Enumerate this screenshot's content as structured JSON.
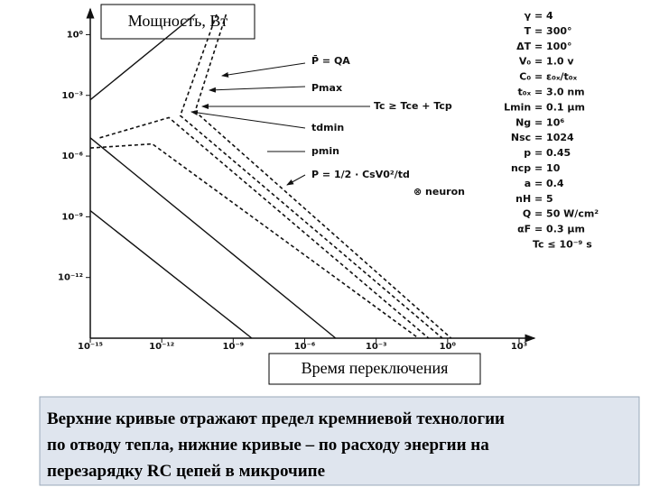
{
  "chart_data": {
    "type": "line",
    "y_label": "Мощность, Вт",
    "x_label": "Время переключения",
    "xscale": "log",
    "yscale": "log",
    "xlim": [
      1e-15,
      1000
    ],
    "ylim": [
      1e-15,
      10
    ],
    "xticks": [
      {
        "value": 1e-15,
        "label": "10⁻¹⁵"
      },
      {
        "value": 1e-12,
        "label": "10⁻¹²"
      },
      {
        "value": 1e-09,
        "label": "10⁻⁹"
      },
      {
        "value": 1e-06,
        "label": "10⁻⁶"
      },
      {
        "value": 0.001,
        "label": "10⁻³"
      },
      {
        "value": 1,
        "label": "10⁰"
      },
      {
        "value": 1000,
        "label": "10³"
      }
    ],
    "yticks": [
      {
        "value": 1,
        "label": "10⁰"
      },
      {
        "value": 0.001,
        "label": "10⁻³"
      },
      {
        "value": 1e-06,
        "label": "10⁻⁶"
      },
      {
        "value": 1e-09,
        "label": "10⁻⁹"
      },
      {
        "value": 1e-12,
        "label": "10⁻¹²"
      }
    ],
    "color": "#111111",
    "series": [
      {
        "style": "solid",
        "x": [
          1e-15,
          6e-09
        ],
        "values": [
          2e-09,
          1e-15
        ]
      },
      {
        "style": "solid",
        "x": [
          1e-15,
          2e-05
        ],
        "values": [
          8e-06,
          1e-15
        ]
      },
      {
        "style": "solid",
        "x": [
          1e-15,
          2.5e-11
        ],
        "values": [
          0.0006,
          10
        ]
      },
      {
        "style": "dashed",
        "x": [
          1e-15,
          4e-13,
          0.06
        ],
        "values": [
          2.5e-06,
          4e-06,
          1e-15
        ]
      },
      {
        "style": "dashed",
        "x": [
          2.5e-15,
          2e-12,
          0.16
        ],
        "values": [
          8e-06,
          8e-05,
          1e-15
        ]
      },
      {
        "style": "dashed",
        "x": [
          2e-10,
          6e-12,
          0.6
        ],
        "values": [
          10,
          0.0001,
          1e-15
        ]
      },
      {
        "style": "dashed",
        "x": [
          5e-10,
          2.5e-11,
          1.4
        ],
        "values": [
          10,
          0.00016,
          1e-15
        ]
      }
    ],
    "annotations": [
      "P̄ = QA",
      "Pmax",
      "Tc ≥ Tce + Tcp",
      "tdmin",
      "pmin",
      "P = 1/2 · CsV0²/td",
      "⊗ neuron"
    ],
    "parameters": [
      "γ = 4",
      "T = 300°",
      "ΔT = 100°",
      "V₀ = 1.0 v",
      "C₀ = ε₀ₓ/t₀ₓ",
      "t₀ₓ = 3.0 nm",
      "Lmin = 0.1 μm",
      "Ng = 10⁶",
      "Nsc = 1024",
      "p = 0.45",
      "ncp = 10",
      "a = 0.4",
      "nH = 5",
      "Q = 50 W/cm²",
      "αF = 0.3 μm",
      "Tc ≤ 10⁻⁹ s"
    ]
  },
  "caption": {
    "lines": [
      "Верхние кривые отражают предел кремниевой технологии",
      "по отводу тепла, нижние кривые – по расходу энергии на",
      "перезарядку RC цепей в микрочипе"
    ]
  }
}
